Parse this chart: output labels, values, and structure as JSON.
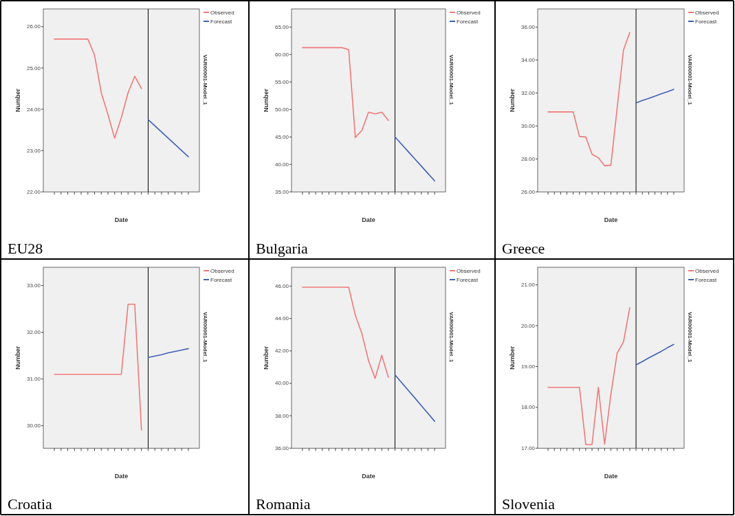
{
  "chart_data": [
    {
      "type": "line",
      "title": "EU28",
      "xlabel": "Date",
      "ylabel": "Number",
      "annotations": [
        "VAR00001-Model_1"
      ],
      "legend": "top right",
      "categories": [
        null,
        null,
        null,
        null,
        null,
        null,
        null,
        null,
        null,
        null,
        null,
        null,
        null,
        null,
        null,
        null,
        null,
        null,
        null,
        null,
        null
      ],
      "ylim": [
        22,
        26.43
      ],
      "yticks": [
        {
          "value": 22,
          "label": "22.00"
        },
        {
          "value": 23,
          "label": "23.00"
        },
        {
          "value": 24,
          "label": "24.00"
        },
        {
          "value": 25,
          "label": "25.00"
        },
        {
          "value": 26,
          "label": "26.00"
        }
      ],
      "series": [
        {
          "name": "Observed",
          "color": "#f07878",
          "values": [
            25.7,
            25.7,
            25.7,
            25.7,
            25.7,
            25.7,
            25.31,
            24.4,
            23.87,
            23.3,
            23.8,
            24.4,
            24.8,
            24.5,
            null,
            null,
            null,
            null,
            null,
            null,
            null
          ]
        },
        {
          "name": "Forecast",
          "color": "#3f5fb5",
          "values": [
            null,
            null,
            null,
            null,
            null,
            null,
            null,
            null,
            null,
            null,
            null,
            null,
            null,
            null,
            23.75,
            23.6,
            23.45,
            23.3,
            23.15,
            23.0,
            22.85
          ]
        }
      ]
    },
    {
      "type": "line",
      "title": "Bulgaria",
      "xlabel": "Date",
      "ylabel": "Number",
      "annotations": [
        "VAR00001-Model_1"
      ],
      "legend": "top right",
      "categories": [
        null,
        null,
        null,
        null,
        null,
        null,
        null,
        null,
        null,
        null,
        null,
        null,
        null,
        null,
        null,
        null,
        null,
        null,
        null,
        null,
        null
      ],
      "ylim": [
        35,
        68.3
      ],
      "yticks": [
        {
          "value": 35,
          "label": "35.00"
        },
        {
          "value": 40,
          "label": "40.00"
        },
        {
          "value": 45,
          "label": "45.00"
        },
        {
          "value": 50,
          "label": "50.00"
        },
        {
          "value": 55,
          "label": "55.00"
        },
        {
          "value": 60,
          "label": "60.00"
        },
        {
          "value": 65,
          "label": "65.00"
        }
      ],
      "series": [
        {
          "name": "Observed",
          "color": "#f07878",
          "values": [
            61.25,
            61.25,
            61.25,
            61.25,
            61.25,
            61.25,
            61.25,
            60.9,
            44.9,
            46.2,
            49.5,
            49.2,
            49.5,
            48.0,
            null,
            null,
            null,
            null,
            null,
            null,
            null
          ]
        },
        {
          "name": "Forecast",
          "color": "#3f5fb5",
          "values": [
            null,
            null,
            null,
            null,
            null,
            null,
            null,
            null,
            null,
            null,
            null,
            null,
            null,
            null,
            45.0,
            43.67,
            42.33,
            41.0,
            39.67,
            38.33,
            37.0
          ]
        }
      ]
    },
    {
      "type": "line",
      "title": "Greece",
      "xlabel": "Date",
      "ylabel": "Number",
      "annotations": [
        "VAR00001-Model_1"
      ],
      "legend": "top right",
      "categories": [
        null,
        null,
        null,
        null,
        null,
        null,
        null,
        null,
        null,
        null,
        null,
        null,
        null,
        null,
        null,
        null,
        null,
        null,
        null,
        null,
        null
      ],
      "ylim": [
        26,
        37.1
      ],
      "yticks": [
        {
          "value": 26,
          "label": "26.00"
        },
        {
          "value": 28,
          "label": "28.00"
        },
        {
          "value": 30,
          "label": "30.00"
        },
        {
          "value": 32,
          "label": "32.00"
        },
        {
          "value": 34,
          "label": "34.00"
        },
        {
          "value": 36,
          "label": "36.00"
        }
      ],
      "series": [
        {
          "name": "Observed",
          "color": "#f07878",
          "values": [
            30.85,
            30.85,
            30.85,
            30.85,
            30.85,
            29.36,
            29.33,
            28.28,
            28.07,
            27.58,
            27.62,
            31.1,
            34.6,
            35.67,
            null,
            null,
            null,
            null,
            null,
            null,
            null
          ]
        },
        {
          "name": "Forecast",
          "color": "#3f5fb5",
          "values": [
            null,
            null,
            null,
            null,
            null,
            null,
            null,
            null,
            null,
            null,
            null,
            null,
            null,
            null,
            31.4,
            31.54,
            31.67,
            31.81,
            31.95,
            32.08,
            32.22
          ]
        }
      ]
    },
    {
      "type": "line",
      "title": "Croatia",
      "xlabel": "Date",
      "ylabel": "Number",
      "annotations": [
        "VAR00001-Model_1"
      ],
      "legend": "top right",
      "categories": [
        null,
        null,
        null,
        null,
        null,
        null,
        null,
        null,
        null,
        null,
        null,
        null,
        null,
        null,
        null,
        null,
        null,
        null,
        null,
        null,
        null
      ],
      "ylim": [
        29.52,
        33.39
      ],
      "yticks": [
        {
          "value": 30,
          "label": "30.00"
        },
        {
          "value": 31,
          "label": "31.00"
        },
        {
          "value": 32,
          "label": "32.00"
        },
        {
          "value": 33,
          "label": "33.00"
        }
      ],
      "series": [
        {
          "name": "Observed",
          "color": "#f07878",
          "values": [
            31.1,
            31.1,
            31.1,
            31.1,
            31.1,
            31.1,
            31.1,
            31.1,
            31.1,
            31.1,
            31.1,
            32.6,
            32.6,
            29.91,
            null,
            null,
            null,
            null,
            null,
            null,
            null
          ]
        },
        {
          "name": "Forecast",
          "color": "#3f5fb5",
          "values": [
            null,
            null,
            null,
            null,
            null,
            null,
            null,
            null,
            null,
            null,
            null,
            null,
            null,
            null,
            31.46,
            31.49,
            31.52,
            31.56,
            31.59,
            31.62,
            31.65
          ]
        }
      ]
    },
    {
      "type": "line",
      "title": "Romania",
      "xlabel": "Date",
      "ylabel": "Number",
      "annotations": [
        "VAR00001-Model_1"
      ],
      "legend": "top right",
      "categories": [
        null,
        null,
        null,
        null,
        null,
        null,
        null,
        null,
        null,
        null,
        null,
        null,
        null,
        null,
        null,
        null,
        null,
        null,
        null,
        null,
        null
      ],
      "ylim": [
        36,
        47.16
      ],
      "yticks": [
        {
          "value": 36,
          "label": "36.00"
        },
        {
          "value": 38,
          "label": "38.00"
        },
        {
          "value": 40,
          "label": "40.00"
        },
        {
          "value": 42,
          "label": "42.00"
        },
        {
          "value": 44,
          "label": "44.00"
        },
        {
          "value": 46,
          "label": "46.00"
        }
      ],
      "series": [
        {
          "name": "Observed",
          "color": "#f07878",
          "values": [
            45.93,
            45.93,
            45.93,
            45.93,
            45.93,
            45.93,
            45.93,
            45.93,
            44.2,
            43.06,
            41.4,
            40.3,
            41.73,
            40.37,
            null,
            null,
            null,
            null,
            null,
            null,
            null
          ]
        },
        {
          "name": "Forecast",
          "color": "#3f5fb5",
          "values": [
            null,
            null,
            null,
            null,
            null,
            null,
            null,
            null,
            null,
            null,
            null,
            null,
            null,
            null,
            40.53,
            40.05,
            39.57,
            39.1,
            38.62,
            38.14,
            37.66
          ]
        }
      ]
    },
    {
      "type": "line",
      "title": "Slovenia",
      "xlabel": "Date",
      "ylabel": "Number",
      "annotations": [
        "VAR00001-Model_1"
      ],
      "legend": "top right",
      "categories": [
        null,
        null,
        null,
        null,
        null,
        null,
        null,
        null,
        null,
        null,
        null,
        null,
        null,
        null,
        null,
        null,
        null,
        null,
        null,
        null,
        null
      ],
      "ylim": [
        17,
        21.43
      ],
      "yticks": [
        {
          "value": 17,
          "label": "17.00"
        },
        {
          "value": 18,
          "label": "18.00"
        },
        {
          "value": 19,
          "label": "19.00"
        },
        {
          "value": 20,
          "label": "20.00"
        },
        {
          "value": 21,
          "label": "21.00"
        }
      ],
      "series": [
        {
          "name": "Observed",
          "color": "#f07878",
          "values": [
            18.49,
            18.49,
            18.49,
            18.49,
            18.49,
            18.49,
            17.09,
            17.09,
            18.49,
            17.1,
            18.32,
            19.33,
            19.6,
            20.44,
            null,
            null,
            null,
            null,
            null,
            null,
            null
          ]
        },
        {
          "name": "Forecast",
          "color": "#3f5fb5",
          "values": [
            null,
            null,
            null,
            null,
            null,
            null,
            null,
            null,
            null,
            null,
            null,
            null,
            null,
            null,
            19.04,
            19.12,
            19.21,
            19.29,
            19.37,
            19.46,
            19.54
          ]
        }
      ]
    }
  ]
}
